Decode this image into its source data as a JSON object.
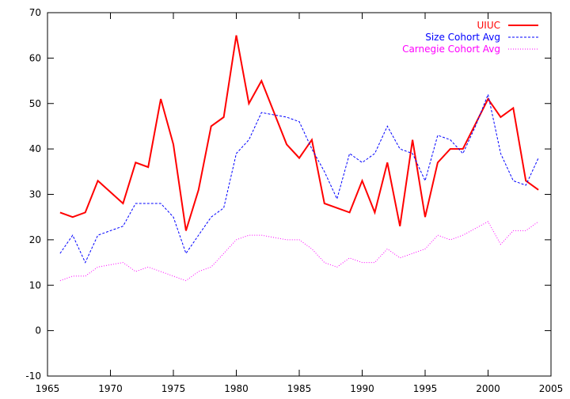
{
  "chart_data": {
    "type": "line",
    "title": "",
    "xlabel": "",
    "ylabel": "",
    "xlim": [
      1965,
      2005
    ],
    "ylim": [
      -10,
      70
    ],
    "xticks": [
      1965,
      1970,
      1975,
      1980,
      1985,
      1990,
      1995,
      2000,
      2005
    ],
    "yticks": [
      -10,
      0,
      10,
      20,
      30,
      40,
      50,
      60,
      70
    ],
    "grid": false,
    "legend_position": "top-right",
    "x": [
      1966,
      1967,
      1968,
      1969,
      1970,
      1971,
      1972,
      1973,
      1974,
      1975,
      1976,
      1977,
      1978,
      1979,
      1980,
      1981,
      1982,
      1983,
      1984,
      1985,
      1986,
      1987,
      1988,
      1989,
      1990,
      1991,
      1992,
      1993,
      1994,
      1995,
      1996,
      1997,
      1998,
      1999,
      2000,
      2001,
      2002,
      2003,
      2004
    ],
    "series": [
      {
        "name": "UIUC",
        "color": "#ff0000",
        "style": "solid",
        "values": [
          26,
          25,
          26,
          33,
          30.5,
          28,
          37,
          36,
          51,
          41,
          22,
          31,
          45,
          47,
          65,
          50,
          55,
          48,
          41,
          38,
          42,
          28,
          27,
          26,
          33,
          26,
          37,
          23,
          42,
          25,
          37,
          40,
          40,
          45.5,
          51,
          47,
          49,
          33,
          31
        ]
      },
      {
        "name": "Size Cohort Avg",
        "color": "#0000ff",
        "style": "dashed",
        "values": [
          17,
          21,
          15,
          21,
          22,
          23,
          28,
          28,
          28,
          25,
          17,
          21,
          25,
          27,
          39,
          42,
          48,
          47.5,
          47,
          46,
          40,
          35,
          29,
          39,
          37,
          39,
          45,
          40,
          39,
          33,
          43,
          42,
          39,
          45,
          52,
          39,
          33,
          32,
          38
        ]
      },
      {
        "name": "Carnegie Cohort Avg",
        "color": "#ff00ff",
        "style": "dotted",
        "values": [
          11,
          12,
          12,
          14,
          14.5,
          15,
          13,
          14,
          13,
          12,
          11,
          13,
          14,
          17,
          20,
          21,
          21,
          20.5,
          20,
          20,
          18,
          15,
          14,
          16,
          15,
          15,
          18,
          16,
          17,
          18,
          21,
          20,
          21,
          22.5,
          24,
          19,
          22,
          22,
          24
        ]
      }
    ]
  }
}
